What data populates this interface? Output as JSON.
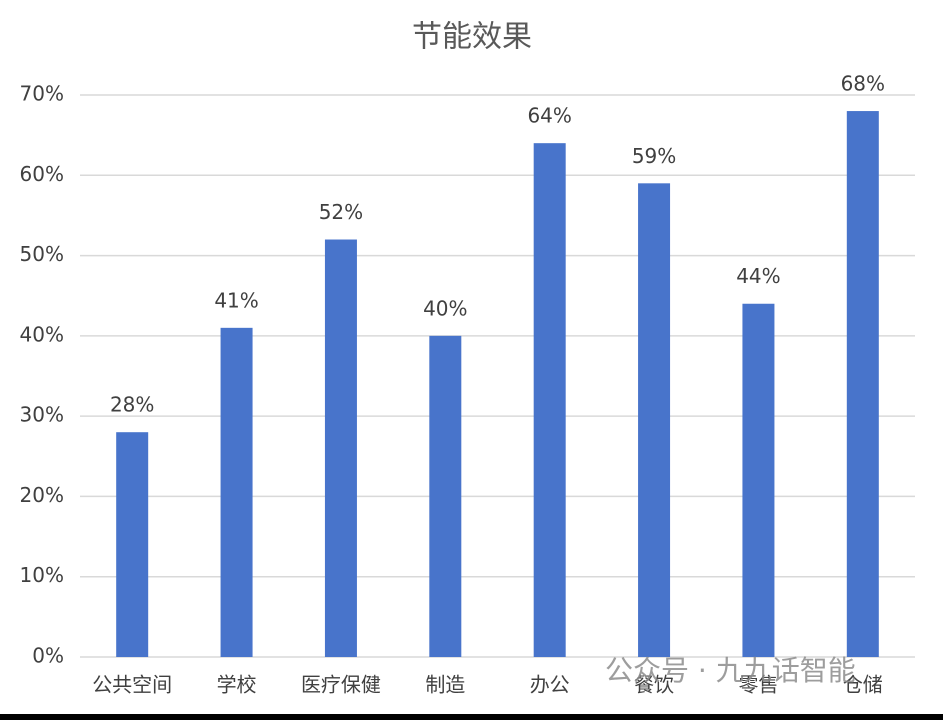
{
  "chart_data": {
    "type": "bar",
    "title": "节能效果",
    "categories": [
      "公共空间",
      "学校",
      "医疗保健",
      "制造",
      "办公",
      "餐饮",
      "零售",
      "仓储"
    ],
    "values": [
      28,
      41,
      52,
      40,
      64,
      59,
      44,
      68
    ],
    "value_labels": [
      "28%",
      "41%",
      "52%",
      "40%",
      "64%",
      "59%",
      "44%",
      "68%"
    ],
    "color": "#4874cb",
    "ylim": [
      0,
      70
    ],
    "yticks": [
      {
        "value": 0,
        "label": "0%"
      },
      {
        "value": 10,
        "label": "10%"
      },
      {
        "value": 20,
        "label": "20%"
      },
      {
        "value": 30,
        "label": "30%"
      },
      {
        "value": 40,
        "label": "40%"
      },
      {
        "value": 50,
        "label": "50%"
      },
      {
        "value": 60,
        "label": "60%"
      },
      {
        "value": 70,
        "label": "70%"
      }
    ],
    "grid": true,
    "watermark": "公众号 · 九九话智能"
  }
}
